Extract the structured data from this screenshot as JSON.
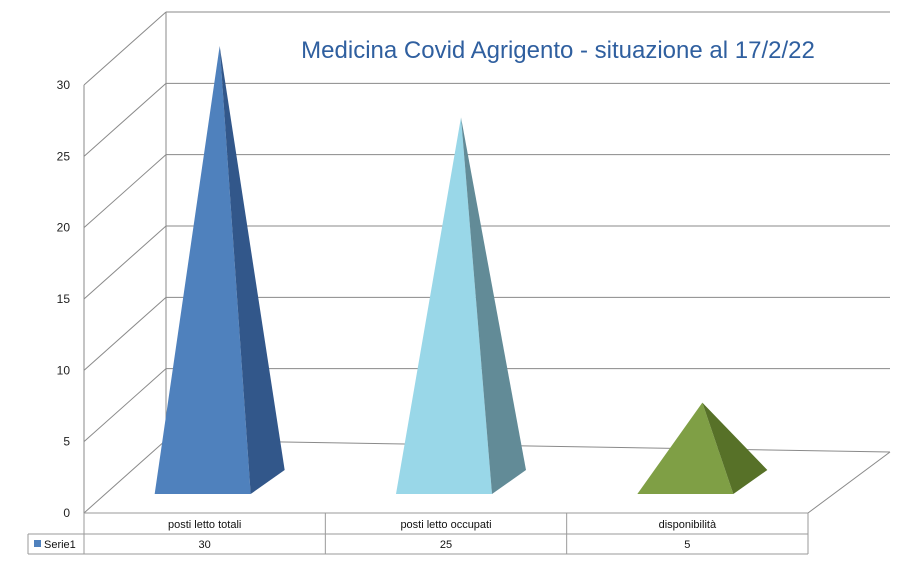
{
  "chart_data": {
    "type": "bar",
    "title": "Medicina Covid Agrigento - situazione al 17/2/22",
    "categories": [
      "posti letto totali",
      "posti letto occupati",
      "disponibilità"
    ],
    "series": [
      {
        "name": "Serie1",
        "values": [
          30,
          25,
          5
        ]
      }
    ],
    "ylim": [
      0,
      30
    ],
    "yticks": [
      0,
      5,
      10,
      15,
      20,
      25,
      30
    ],
    "grid": true,
    "legend": "data-table",
    "colors": {
      "bars": [
        "#4f81bd",
        "#99d7e8",
        "#7f9f45"
      ],
      "bars_dark": [
        "#32578a",
        "#628b97",
        "#577128"
      ],
      "grid": "#8a8a8a",
      "title": "#2f5f9f",
      "legend_key": "#4f81bd"
    }
  }
}
